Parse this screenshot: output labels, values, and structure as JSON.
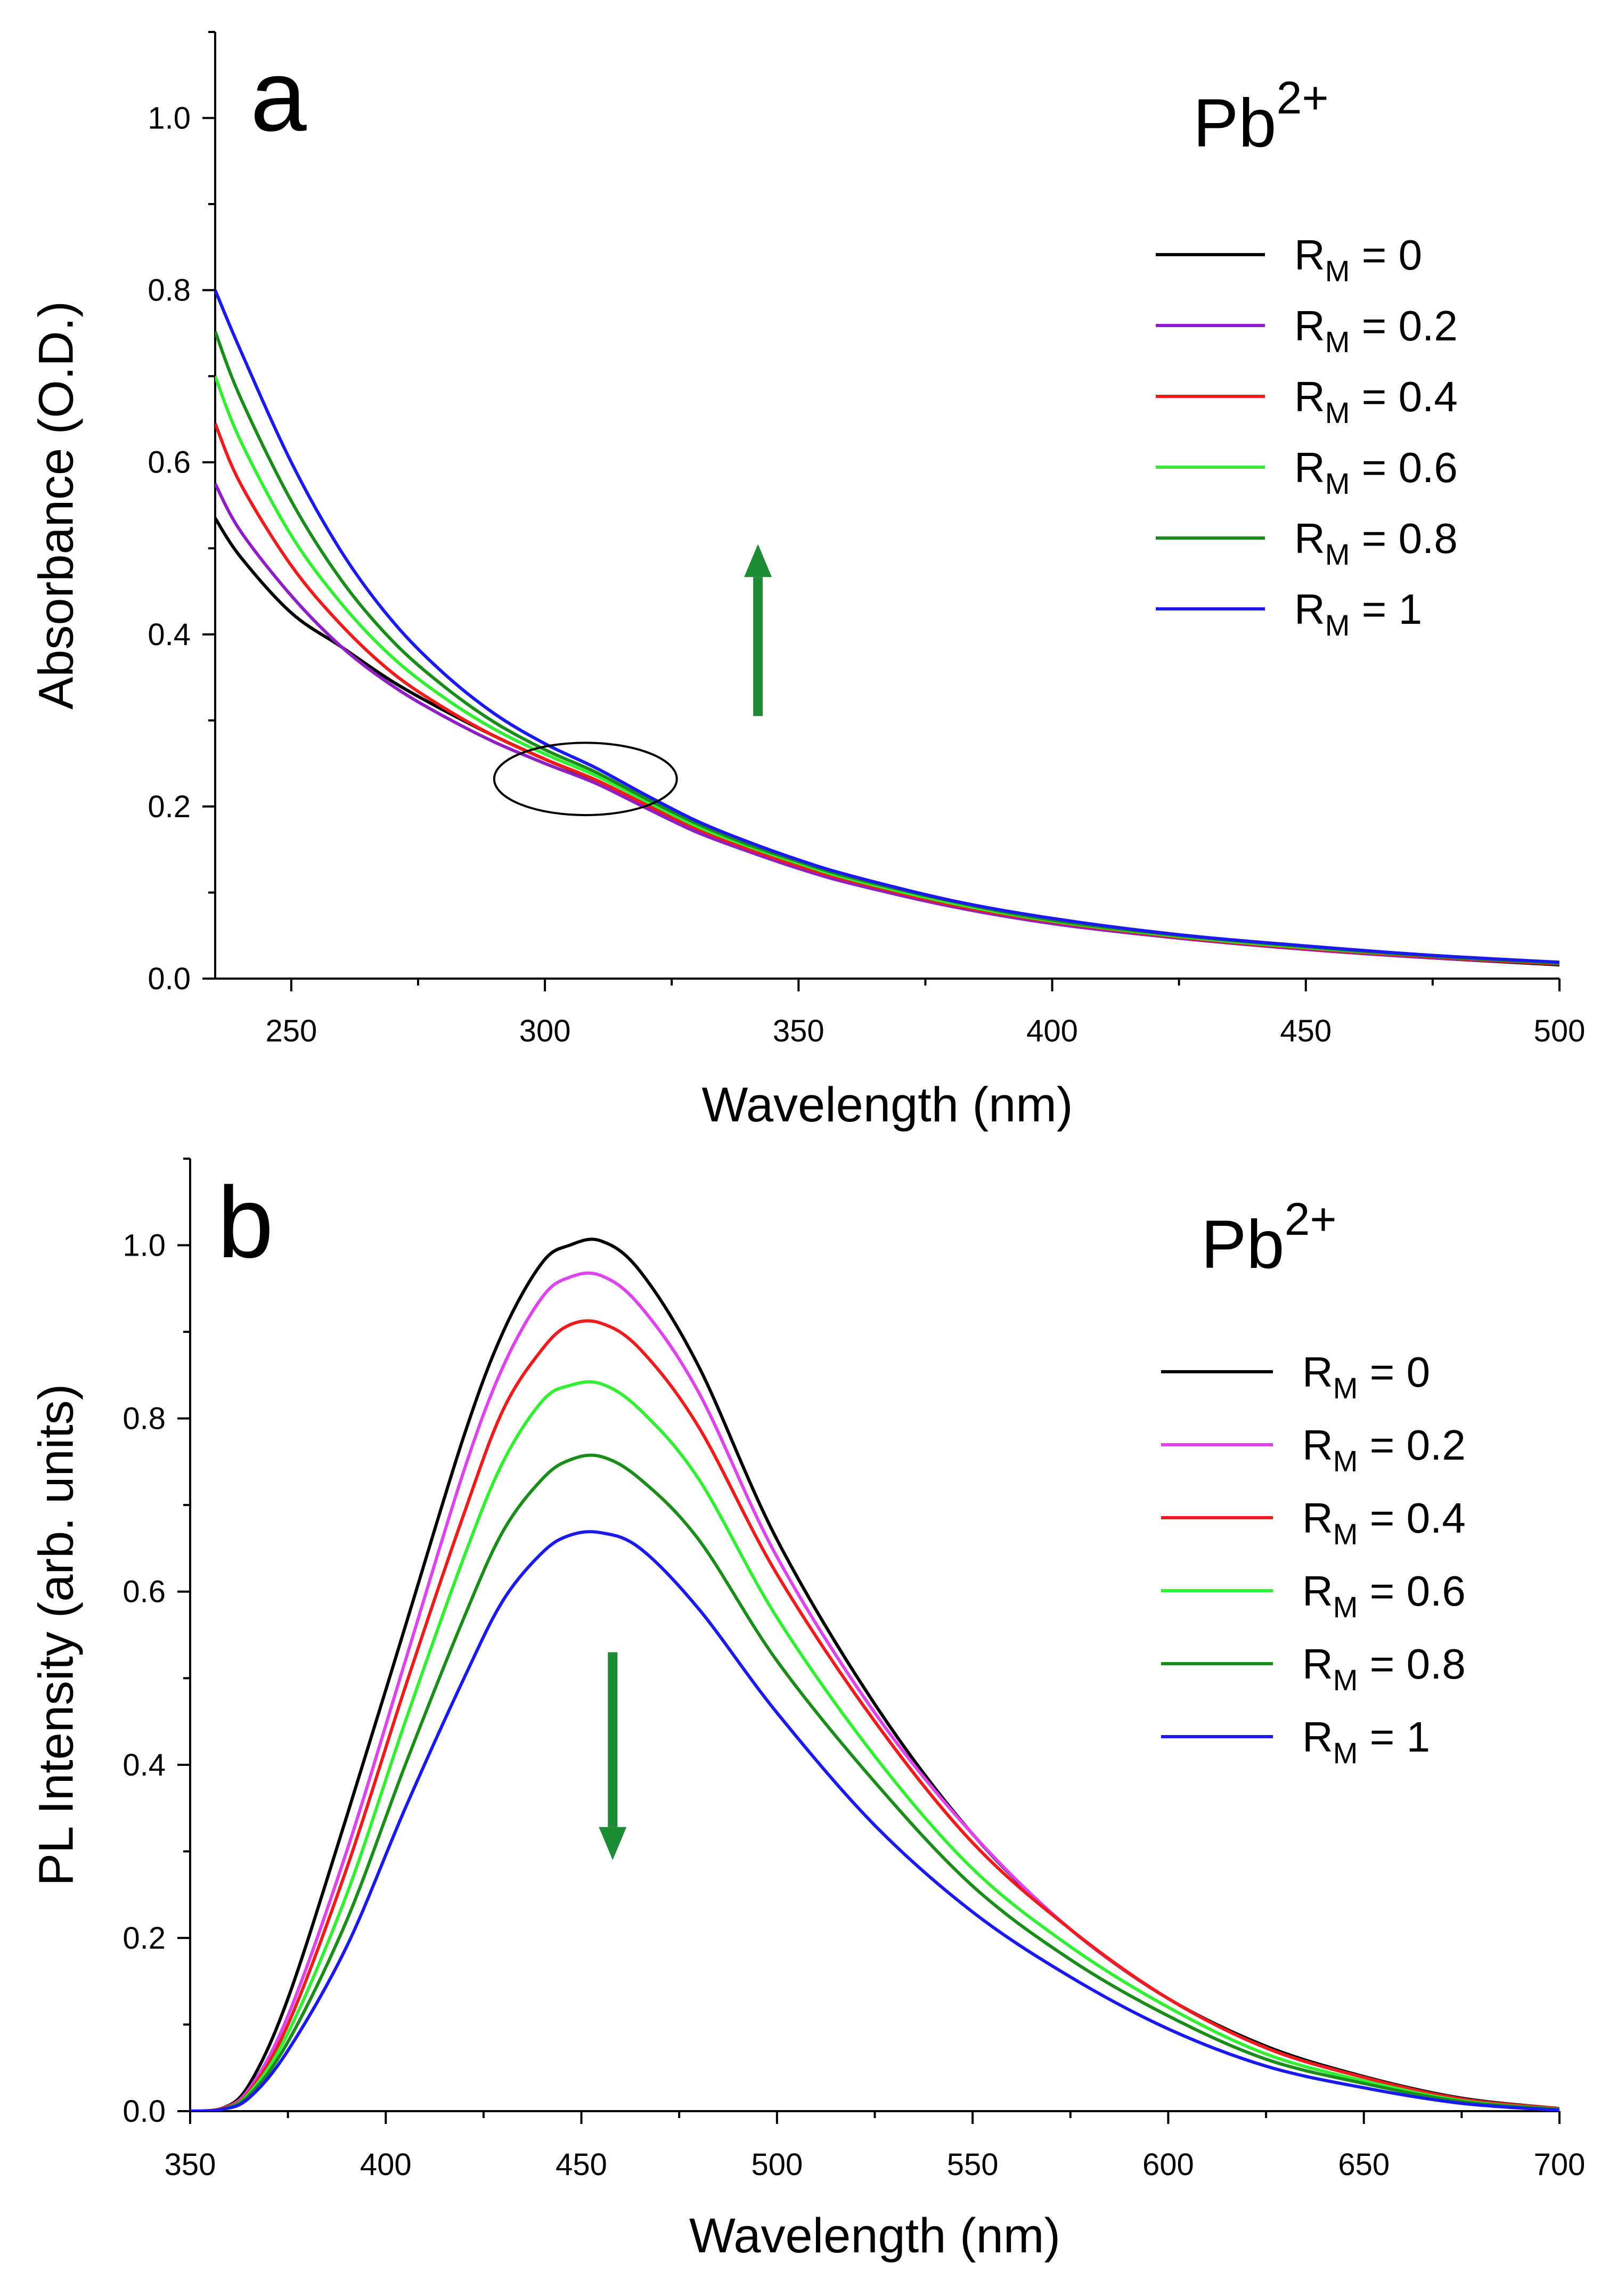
{
  "chart_data": [
    {
      "type": "line",
      "id": "a",
      "panel_label": "a",
      "ion_label": {
        "base": "Pb",
        "sup": "2+"
      },
      "xlabel": "Wavelength (nm)",
      "ylabel": "Absorbance (O.D.)",
      "xlim": [
        235,
        500
      ],
      "ylim": [
        0.0,
        1.1
      ],
      "xticks": [
        250,
        300,
        350,
        400,
        450,
        500
      ],
      "yticks": [
        0.0,
        0.2,
        0.4,
        0.6,
        0.8,
        1.0
      ],
      "ytick_labels": [
        "0.0",
        "0.2",
        "0.4",
        "0.6",
        "0.8",
        "1.0"
      ],
      "legend_position": "right",
      "arrow": {
        "direction": "up",
        "color": "#1e8c34",
        "x": 342,
        "y_start": 0.305,
        "y_end": 0.505
      },
      "annotation_ellipse": {
        "cx": 308,
        "cy": 0.232,
        "rx": 18,
        "ry": 0.042
      },
      "series": [
        {
          "name": "0",
          "label": {
            "base": "R",
            "sub": "M",
            "rest": " = 0"
          },
          "color": "#000000",
          "x": [
            235,
            240,
            250,
            260,
            270,
            280,
            290,
            300,
            310,
            320,
            330,
            340,
            350,
            360,
            380,
            400,
            425,
            450,
            475,
            500
          ],
          "y": [
            0.535,
            0.49,
            0.425,
            0.385,
            0.345,
            0.312,
            0.282,
            0.255,
            0.23,
            0.2,
            0.172,
            0.15,
            0.13,
            0.112,
            0.085,
            0.064,
            0.047,
            0.034,
            0.024,
            0.016
          ]
        },
        {
          "name": "0.2",
          "label": {
            "base": "R",
            "sub": "M",
            "rest": " = 0.2"
          },
          "color": "#8f1fc4",
          "x": [
            235,
            240,
            250,
            260,
            270,
            280,
            290,
            300,
            310,
            320,
            330,
            340,
            350,
            360,
            380,
            400,
            425,
            450,
            475,
            500
          ],
          "y": [
            0.575,
            0.52,
            0.445,
            0.385,
            0.34,
            0.305,
            0.275,
            0.25,
            0.227,
            0.198,
            0.17,
            0.148,
            0.128,
            0.111,
            0.084,
            0.064,
            0.047,
            0.034,
            0.024,
            0.017
          ]
        },
        {
          "name": "0.4",
          "label": {
            "base": "R",
            "sub": "M",
            "rest": " = 0.4"
          },
          "color": "#ee1c1c",
          "x": [
            235,
            240,
            250,
            260,
            270,
            280,
            290,
            300,
            310,
            320,
            330,
            340,
            350,
            360,
            380,
            400,
            425,
            450,
            475,
            500
          ],
          "y": [
            0.645,
            0.575,
            0.48,
            0.41,
            0.355,
            0.315,
            0.282,
            0.255,
            0.231,
            0.202,
            0.174,
            0.151,
            0.131,
            0.114,
            0.086,
            0.066,
            0.048,
            0.035,
            0.025,
            0.017
          ]
        },
        {
          "name": "0.6",
          "label": {
            "base": "R",
            "sub": "M",
            "rest": " = 0.6"
          },
          "color": "#33ee33",
          "x": [
            235,
            240,
            250,
            260,
            270,
            280,
            290,
            300,
            310,
            320,
            330,
            340,
            350,
            360,
            380,
            400,
            425,
            450,
            475,
            500
          ],
          "y": [
            0.7,
            0.625,
            0.515,
            0.435,
            0.373,
            0.327,
            0.29,
            0.261,
            0.236,
            0.206,
            0.177,
            0.154,
            0.134,
            0.116,
            0.088,
            0.067,
            0.049,
            0.036,
            0.026,
            0.018
          ]
        },
        {
          "name": "0.8",
          "label": {
            "base": "R",
            "sub": "M",
            "rest": " = 0.8"
          },
          "color": "#1a8c1a",
          "x": [
            235,
            240,
            250,
            260,
            270,
            280,
            290,
            300,
            310,
            320,
            330,
            340,
            350,
            360,
            380,
            400,
            425,
            450,
            475,
            500
          ],
          "y": [
            0.752,
            0.675,
            0.555,
            0.462,
            0.392,
            0.34,
            0.298,
            0.266,
            0.24,
            0.209,
            0.18,
            0.156,
            0.136,
            0.118,
            0.09,
            0.068,
            0.05,
            0.037,
            0.026,
            0.018
          ]
        },
        {
          "name": "1",
          "label": {
            "base": "R",
            "sub": "M",
            "rest": " = 1"
          },
          "color": "#1a1aee",
          "x": [
            235,
            240,
            250,
            260,
            270,
            280,
            290,
            300,
            310,
            320,
            330,
            340,
            350,
            360,
            380,
            400,
            425,
            450,
            475,
            500
          ],
          "y": [
            0.8,
            0.73,
            0.6,
            0.495,
            0.415,
            0.355,
            0.308,
            0.273,
            0.245,
            0.213,
            0.183,
            0.159,
            0.138,
            0.12,
            0.091,
            0.07,
            0.051,
            0.038,
            0.027,
            0.019
          ]
        }
      ]
    },
    {
      "type": "line",
      "id": "b",
      "panel_label": "b",
      "ion_label": {
        "base": "Pb",
        "sup": "2+"
      },
      "xlabel": "Wavelength (nm)",
      "ylabel": "PL Intensity (arb. units)",
      "xlim": [
        350,
        700
      ],
      "ylim": [
        0.0,
        1.1
      ],
      "xticks": [
        350,
        400,
        450,
        500,
        550,
        600,
        650,
        700
      ],
      "yticks": [
        0.0,
        0.2,
        0.4,
        0.6,
        0.8,
        1.0
      ],
      "ytick_labels": [
        "0.0",
        "0.2",
        "0.4",
        "0.6",
        "0.8",
        "1.0"
      ],
      "legend_position": "right",
      "arrow": {
        "direction": "down",
        "color": "#1e8c34",
        "x": 458,
        "y_start": 0.53,
        "y_end": 0.29
      },
      "series": [
        {
          "name": "0",
          "label": {
            "base": "R",
            "sub": "M",
            "rest": " = 0"
          },
          "color": "#000000",
          "x": [
            350,
            358,
            365,
            375,
            390,
            405,
            420,
            430,
            440,
            447,
            455,
            465,
            480,
            500,
            525,
            550,
            575,
            600,
            625,
            650,
            675,
            700
          ],
          "y": [
            0.0,
            0.003,
            0.03,
            0.13,
            0.34,
            0.56,
            0.78,
            0.9,
            0.98,
            1.0,
            1.005,
            0.97,
            0.86,
            0.66,
            0.47,
            0.32,
            0.21,
            0.13,
            0.075,
            0.04,
            0.015,
            0.003
          ]
        },
        {
          "name": "0.2",
          "label": {
            "base": "R",
            "sub": "M",
            "rest": " = 0.2"
          },
          "color": "#dd44ee",
          "x": [
            350,
            358,
            365,
            375,
            390,
            405,
            420,
            430,
            440,
            447,
            455,
            465,
            480,
            500,
            525,
            550,
            575,
            600,
            625,
            650,
            675,
            700
          ],
          "y": [
            0.0,
            0.003,
            0.025,
            0.11,
            0.3,
            0.52,
            0.74,
            0.86,
            0.94,
            0.963,
            0.965,
            0.93,
            0.83,
            0.64,
            0.46,
            0.32,
            0.21,
            0.13,
            0.073,
            0.039,
            0.014,
            0.003
          ]
        },
        {
          "name": "0.4",
          "label": {
            "base": "R",
            "sub": "M",
            "rest": " = 0.4"
          },
          "color": "#ee1c1c",
          "x": [
            350,
            358,
            365,
            375,
            390,
            405,
            420,
            430,
            440,
            447,
            455,
            465,
            480,
            500,
            525,
            550,
            575,
            600,
            625,
            650,
            675,
            700
          ],
          "y": [
            0.0,
            0.003,
            0.022,
            0.1,
            0.28,
            0.49,
            0.69,
            0.81,
            0.88,
            0.908,
            0.91,
            0.88,
            0.79,
            0.62,
            0.45,
            0.31,
            0.21,
            0.13,
            0.073,
            0.039,
            0.014,
            0.003
          ]
        },
        {
          "name": "0.6",
          "label": {
            "base": "R",
            "sub": "M",
            "rest": " = 0.6"
          },
          "color": "#33ee33",
          "x": [
            350,
            358,
            365,
            375,
            390,
            405,
            420,
            430,
            440,
            447,
            455,
            465,
            480,
            500,
            525,
            550,
            575,
            600,
            625,
            650,
            675,
            700
          ],
          "y": [
            0.0,
            0.002,
            0.02,
            0.09,
            0.25,
            0.45,
            0.64,
            0.75,
            0.82,
            0.838,
            0.84,
            0.81,
            0.73,
            0.57,
            0.41,
            0.28,
            0.19,
            0.12,
            0.066,
            0.035,
            0.012,
            0.002
          ]
        },
        {
          "name": "0.8",
          "label": {
            "base": "R",
            "sub": "M",
            "rest": " = 0.8"
          },
          "color": "#1a8c1a",
          "x": [
            350,
            358,
            365,
            375,
            390,
            405,
            420,
            430,
            440,
            447,
            455,
            465,
            480,
            500,
            525,
            550,
            575,
            600,
            625,
            650,
            675,
            700
          ],
          "y": [
            0.0,
            0.002,
            0.018,
            0.08,
            0.22,
            0.4,
            0.57,
            0.67,
            0.73,
            0.752,
            0.756,
            0.73,
            0.66,
            0.52,
            0.38,
            0.26,
            0.175,
            0.11,
            0.06,
            0.032,
            0.011,
            0.002
          ]
        },
        {
          "name": "1",
          "label": {
            "base": "R",
            "sub": "M",
            "rest": " = 1"
          },
          "color": "#1a1aee",
          "x": [
            350,
            358,
            365,
            375,
            390,
            405,
            420,
            430,
            440,
            447,
            455,
            465,
            480,
            500,
            525,
            550,
            575,
            600,
            625,
            650,
            675,
            700
          ],
          "y": [
            0.0,
            0.002,
            0.015,
            0.07,
            0.19,
            0.35,
            0.5,
            0.59,
            0.645,
            0.665,
            0.668,
            0.65,
            0.58,
            0.46,
            0.33,
            0.23,
            0.155,
            0.095,
            0.052,
            0.027,
            0.009,
            0.001
          ]
        }
      ]
    }
  ]
}
